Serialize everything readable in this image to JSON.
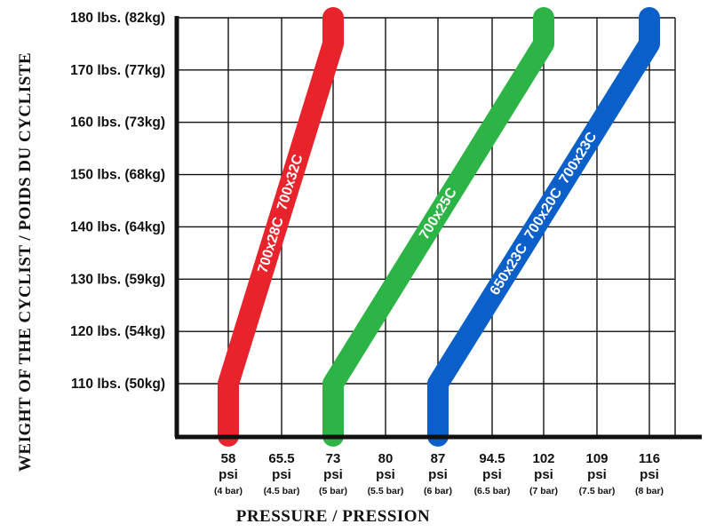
{
  "chart_data": {
    "type": "line",
    "xlabel": "PRESSURE / PRESSION",
    "ylabel": "WEIGHT OF THE CYCLIST / POIDS DU CYCLISTE",
    "x_ticks": [
      {
        "value": 58,
        "num": "58",
        "unit": "psi",
        "bar": "(4 bar)"
      },
      {
        "value": 65.5,
        "num": "65.5",
        "unit": "psi",
        "bar": "(4.5 bar)"
      },
      {
        "value": 73,
        "num": "73",
        "unit": "psi",
        "bar": "(5 bar)"
      },
      {
        "value": 80,
        "num": "80",
        "unit": "psi",
        "bar": "(5.5 bar)"
      },
      {
        "value": 87,
        "num": "87",
        "unit": "psi",
        "bar": "(6 bar)"
      },
      {
        "value": 94.5,
        "num": "94.5",
        "unit": "psi",
        "bar": "(6.5 bar)"
      },
      {
        "value": 102,
        "num": "102",
        "unit": "psi",
        "bar": "(7 bar)"
      },
      {
        "value": 109,
        "num": "109",
        "unit": "psi",
        "bar": "(7.5 bar)"
      },
      {
        "value": 116,
        "num": "116",
        "unit": "psi",
        "bar": "(8 bar)"
      }
    ],
    "y_ticks": [
      {
        "value": 110,
        "label": "110 lbs. (50kg)"
      },
      {
        "value": 120,
        "label": "120 lbs. (54kg)"
      },
      {
        "value": 130,
        "label": "130 lbs. (59kg)"
      },
      {
        "value": 140,
        "label": "140 lbs. (64kg)"
      },
      {
        "value": 150,
        "label": "150 lbs. (68kg)"
      },
      {
        "value": 160,
        "label": "160 lbs. (73kg)"
      },
      {
        "value": 170,
        "label": "170 lbs. (77kg)"
      },
      {
        "value": 180,
        "label": "180 lbs. (82kg)"
      }
    ],
    "grid": true,
    "series": [
      {
        "name": "700x28C  700x32C",
        "color": "#e8232b",
        "points": [
          {
            "x": 58,
            "y": 100
          },
          {
            "x": 58,
            "y": 110
          },
          {
            "x": 73,
            "y": 175
          },
          {
            "x": 73,
            "y": 180
          }
        ]
      },
      {
        "name": "700x25C",
        "color": "#2db446",
        "points": [
          {
            "x": 73,
            "y": 100
          },
          {
            "x": 73,
            "y": 110
          },
          {
            "x": 102,
            "y": 175
          },
          {
            "x": 102,
            "y": 180
          }
        ]
      },
      {
        "name": "650x23C  700x20C  700x23C",
        "color": "#0a5fc9",
        "points": [
          {
            "x": 87,
            "y": 100
          },
          {
            "x": 87,
            "y": 110
          },
          {
            "x": 116,
            "y": 175
          },
          {
            "x": 116,
            "y": 180
          }
        ]
      }
    ]
  }
}
